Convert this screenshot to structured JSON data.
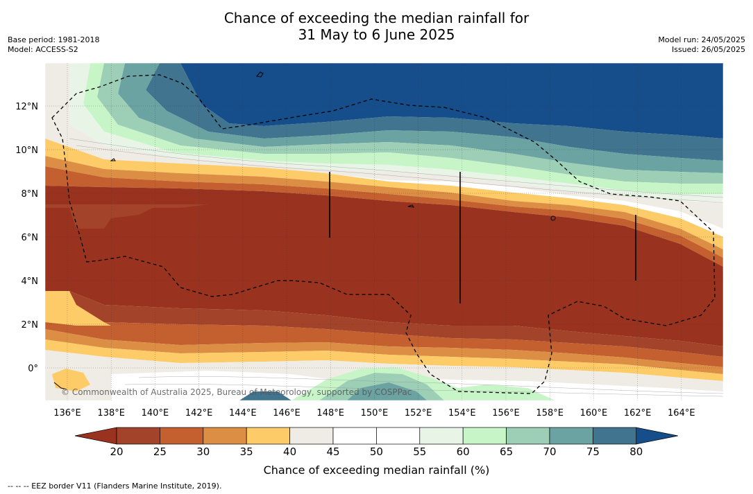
{
  "title_line1": "Chance of exceeding the median rainfall for",
  "title_line2": "31 May to 6 June 2025",
  "base_period": "Base period: 1981-2018",
  "model": "Model: ACCESS-S2",
  "model_run": "Model run: 24/05/2025",
  "issued": "Issued: 26/05/2025",
  "copyright": "© Commonwealth of Australia 2025, Bureau of Meteorology, supported by COSPPac",
  "lon_ticks": [
    "136°E",
    "138°E",
    "140°E",
    "142°E",
    "144°E",
    "146°E",
    "148°E",
    "150°E",
    "152°E",
    "154°E",
    "156°E",
    "158°E",
    "160°E",
    "162°E",
    "164°E"
  ],
  "lat_ticks": [
    "12°N",
    "10°N",
    "8°N",
    "6°N",
    "4°N",
    "2°N",
    "0°"
  ],
  "colorbar": {
    "labels": [
      "20",
      "25",
      "30",
      "35",
      "40",
      "45",
      "50",
      "55",
      "60",
      "65",
      "70",
      "75",
      "80"
    ],
    "colors": [
      "#a2432a",
      "#c45f30",
      "#dc8f44",
      "#fdcb68",
      "#efebe5",
      "#ffffff",
      "#ffffff",
      "#e8f5e6",
      "#c8f5c8",
      "#9ccfb5",
      "#6ba3a2",
      "#40748f"
    ],
    "under_color": "#99331f",
    "over_color": "#154e8a",
    "title": "Chance of exceeding median rainfall (%)"
  },
  "footnote": "-- -- -- EEZ border V11 (Flanders Marine Institute, 2019).",
  "legend": {
    "eez_line": "dashed black"
  }
}
